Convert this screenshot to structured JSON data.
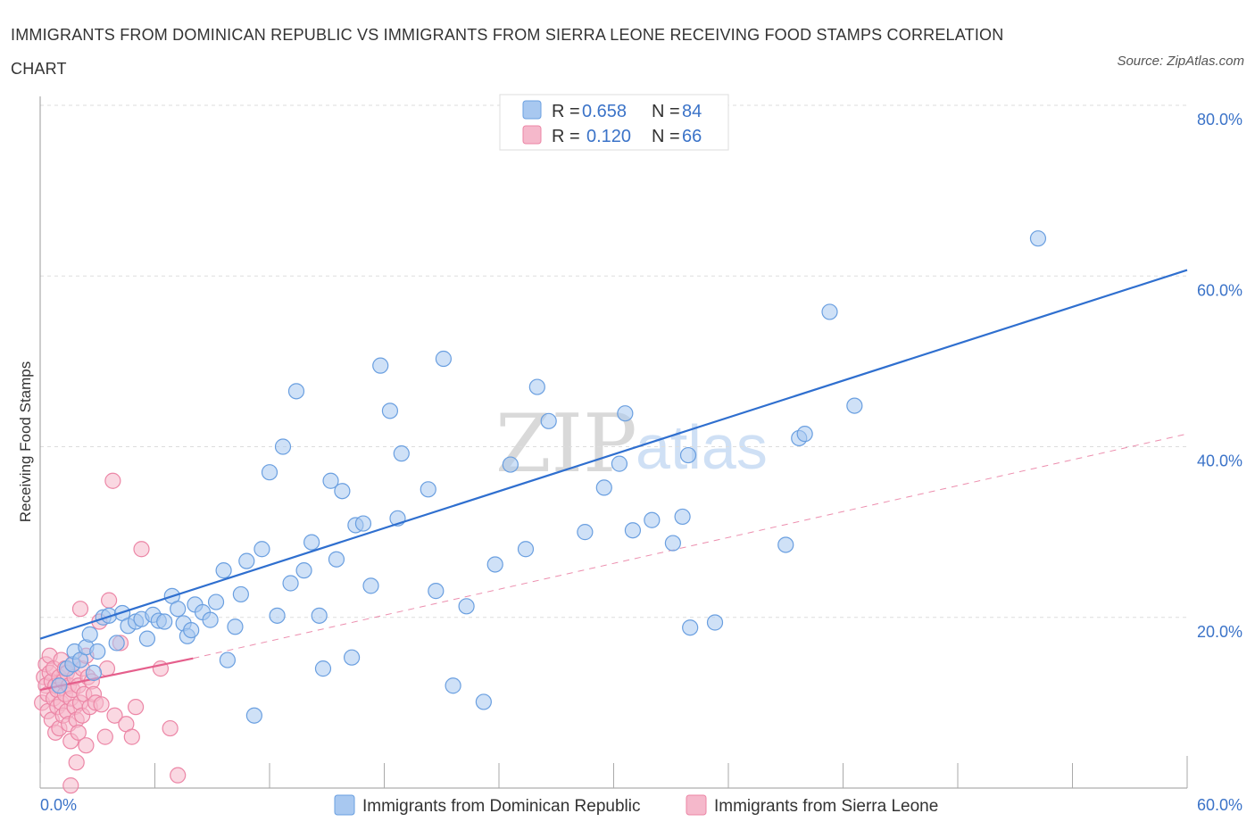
{
  "title": "IMMIGRANTS FROM DOMINICAN REPUBLIC VS IMMIGRANTS FROM SIERRA LEONE RECEIVING FOOD STAMPS CORRELATION CHART",
  "source": "Source: ZipAtlas.com",
  "watermark": {
    "zip": "ZIP",
    "atlas": "atlas"
  },
  "colors": {
    "blue": "#a8c8f0",
    "blue_stroke": "#6a9fe0",
    "blue_line": "#2f6fcf",
    "pink": "#f5b8cb",
    "pink_stroke": "#ec86a6",
    "pink_line": "#e55f8c",
    "tick_text": "#3b73c8",
    "grid": "#dddddd"
  },
  "legend": {
    "rows": [
      {
        "r_label": "R =",
        "r_value": "0.658",
        "n_label": "N =",
        "n_value": "84"
      },
      {
        "r_label": "R =",
        "r_value": "0.120",
        "n_label": "N =",
        "n_value": "66"
      }
    ]
  },
  "chart_data": {
    "type": "scatter",
    "title": "IMMIGRANTS FROM DOMINICAN REPUBLIC VS IMMIGRANTS FROM SIERRA LEONE RECEIVING FOOD STAMPS CORRELATION CHART",
    "xlabel": "",
    "ylabel": "Receiving Food Stamps",
    "xlim": [
      0,
      60
    ],
    "ylim": [
      0,
      80
    ],
    "x_tick_labels": [
      "0.0%",
      "60.0%"
    ],
    "y_ticks": [
      20,
      40,
      60,
      80
    ],
    "y_tick_labels": [
      "20.0%",
      "40.0%",
      "60.0%",
      "80.0%"
    ],
    "grid": true,
    "legend_placement": "top-center",
    "series": [
      {
        "name": "Immigrants from Dominican Republic",
        "color": "#a8c8f0",
        "R": 0.658,
        "N": 84,
        "trend": {
          "x": [
            0,
            60
          ],
          "y": [
            17.5,
            60.7
          ],
          "style": "solid"
        },
        "points": [
          [
            1.0,
            12.0
          ],
          [
            1.4,
            14.0
          ],
          [
            1.7,
            14.5
          ],
          [
            1.8,
            16.0
          ],
          [
            2.1,
            15.0
          ],
          [
            2.4,
            16.5
          ],
          [
            2.6,
            18.0
          ],
          [
            2.8,
            13.5
          ],
          [
            3.0,
            16.0
          ],
          [
            3.3,
            20.0
          ],
          [
            3.6,
            20.2
          ],
          [
            4.0,
            17.0
          ],
          [
            4.3,
            20.5
          ],
          [
            4.6,
            19.0
          ],
          [
            5.0,
            19.5
          ],
          [
            5.3,
            19.8
          ],
          [
            5.6,
            17.5
          ],
          [
            5.9,
            20.3
          ],
          [
            6.2,
            19.6
          ],
          [
            6.5,
            19.5
          ],
          [
            6.9,
            22.5
          ],
          [
            7.2,
            21.0
          ],
          [
            7.5,
            19.3
          ],
          [
            7.7,
            17.8
          ],
          [
            7.9,
            18.5
          ],
          [
            8.1,
            21.5
          ],
          [
            8.5,
            20.6
          ],
          [
            8.9,
            19.7
          ],
          [
            9.2,
            21.8
          ],
          [
            9.6,
            25.5
          ],
          [
            9.8,
            15.0
          ],
          [
            10.2,
            18.9
          ],
          [
            10.5,
            22.7
          ],
          [
            10.8,
            26.6
          ],
          [
            11.2,
            8.5
          ],
          [
            11.6,
            28.0
          ],
          [
            12.0,
            37.0
          ],
          [
            12.4,
            20.2
          ],
          [
            12.7,
            40.0
          ],
          [
            13.1,
            24.0
          ],
          [
            13.4,
            46.5
          ],
          [
            13.8,
            25.5
          ],
          [
            14.2,
            28.8
          ],
          [
            14.6,
            20.2
          ],
          [
            14.8,
            14.0
          ],
          [
            15.2,
            36.0
          ],
          [
            15.5,
            26.8
          ],
          [
            15.8,
            34.8
          ],
          [
            16.3,
            15.3
          ],
          [
            16.5,
            30.8
          ],
          [
            16.9,
            31.0
          ],
          [
            17.3,
            23.7
          ],
          [
            17.8,
            49.5
          ],
          [
            18.3,
            44.2
          ],
          [
            18.7,
            31.6
          ],
          [
            18.9,
            39.2
          ],
          [
            20.3,
            35.0
          ],
          [
            20.7,
            23.1
          ],
          [
            21.1,
            50.3
          ],
          [
            21.6,
            12.0
          ],
          [
            22.3,
            21.3
          ],
          [
            23.2,
            10.1
          ],
          [
            23.8,
            26.2
          ],
          [
            24.6,
            37.9
          ],
          [
            25.4,
            28.0
          ],
          [
            26.0,
            47.0
          ],
          [
            26.6,
            43.0
          ],
          [
            28.5,
            30.0
          ],
          [
            29.5,
            35.2
          ],
          [
            30.3,
            38.0
          ],
          [
            30.6,
            43.9
          ],
          [
            31.0,
            30.2
          ],
          [
            32.0,
            31.4
          ],
          [
            33.1,
            28.7
          ],
          [
            33.6,
            31.8
          ],
          [
            33.9,
            39.0
          ],
          [
            34.0,
            18.8
          ],
          [
            35.3,
            19.4
          ],
          [
            39.0,
            28.5
          ],
          [
            39.7,
            41.0
          ],
          [
            40.0,
            41.5
          ],
          [
            41.3,
            55.8
          ],
          [
            42.6,
            44.8
          ],
          [
            52.2,
            64.4
          ]
        ]
      },
      {
        "name": "Immigrants from Sierra Leone",
        "color": "#f5b8cb",
        "R": 0.12,
        "N": 66,
        "trend": {
          "x": [
            0,
            8
          ],
          "y": [
            11.5,
            15.2
          ],
          "style": "solid"
        },
        "trend_extended": {
          "x": [
            8,
            60
          ],
          "y": [
            15.2,
            41.5
          ],
          "style": "dashed"
        },
        "points": [
          [
            0.1,
            10.0
          ],
          [
            0.2,
            13.0
          ],
          [
            0.3,
            12.0
          ],
          [
            0.3,
            14.5
          ],
          [
            0.4,
            9.0
          ],
          [
            0.4,
            11.0
          ],
          [
            0.5,
            15.5
          ],
          [
            0.5,
            13.5
          ],
          [
            0.6,
            12.5
          ],
          [
            0.6,
            8.0
          ],
          [
            0.7,
            10.5
          ],
          [
            0.7,
            14.0
          ],
          [
            0.8,
            6.5
          ],
          [
            0.8,
            12.0
          ],
          [
            0.9,
            11.5
          ],
          [
            0.9,
            9.5
          ],
          [
            1.0,
            13.0
          ],
          [
            1.0,
            7.0
          ],
          [
            1.1,
            15.0
          ],
          [
            1.1,
            10.0
          ],
          [
            1.2,
            12.5
          ],
          [
            1.2,
            8.5
          ],
          [
            1.3,
            14.0
          ],
          [
            1.3,
            11.0
          ],
          [
            1.4,
            9.0
          ],
          [
            1.4,
            13.5
          ],
          [
            1.5,
            7.5
          ],
          [
            1.5,
            12.0
          ],
          [
            1.6,
            10.5
          ],
          [
            1.6,
            5.5
          ],
          [
            1.7,
            14.5
          ],
          [
            1.7,
            11.5
          ],
          [
            1.8,
            9.5
          ],
          [
            1.8,
            13.0
          ],
          [
            1.9,
            8.0
          ],
          [
            1.9,
            3.0
          ],
          [
            2.0,
            12.0
          ],
          [
            2.0,
            6.5
          ],
          [
            2.1,
            10.0
          ],
          [
            2.1,
            21.0
          ],
          [
            2.2,
            14.0
          ],
          [
            2.2,
            8.5
          ],
          [
            2.3,
            11.0
          ],
          [
            2.4,
            5.0
          ],
          [
            2.4,
            15.5
          ],
          [
            2.5,
            13.0
          ],
          [
            2.6,
            9.5
          ],
          [
            2.7,
            12.5
          ],
          [
            2.8,
            11.0
          ],
          [
            2.9,
            10.0
          ],
          [
            3.1,
            19.5
          ],
          [
            3.2,
            9.8
          ],
          [
            3.4,
            6.0
          ],
          [
            3.5,
            14.0
          ],
          [
            3.6,
            22.0
          ],
          [
            3.8,
            36.0
          ],
          [
            3.9,
            8.5
          ],
          [
            4.2,
            17.0
          ],
          [
            4.5,
            7.5
          ],
          [
            4.8,
            6.0
          ],
          [
            5.0,
            9.5
          ],
          [
            5.3,
            28.0
          ],
          [
            6.3,
            14.0
          ],
          [
            6.8,
            7.0
          ],
          [
            7.2,
            1.5
          ],
          [
            1.6,
            0.3
          ]
        ]
      }
    ]
  }
}
